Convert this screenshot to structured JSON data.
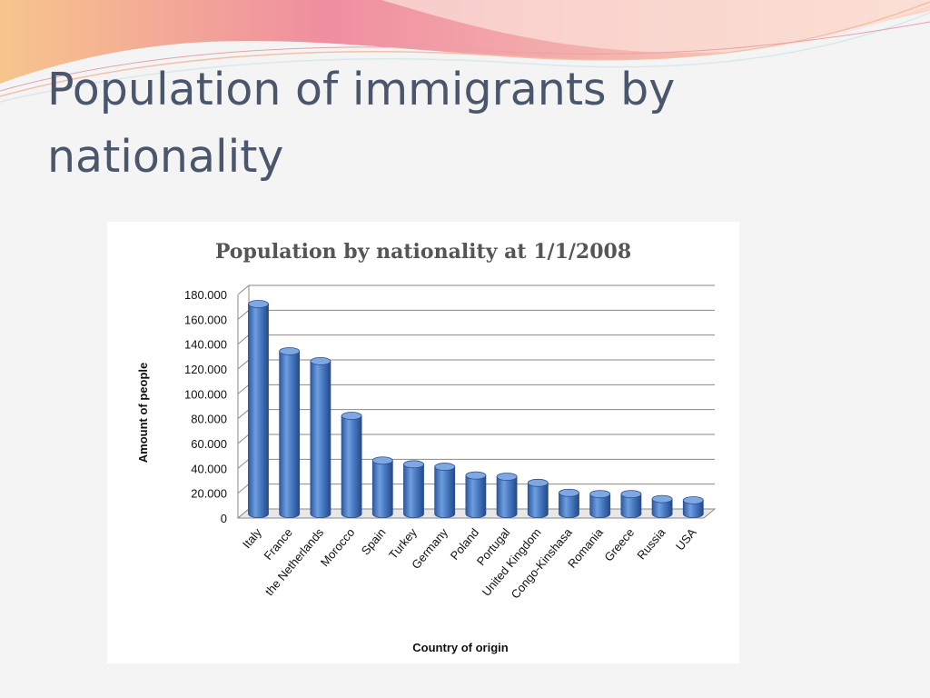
{
  "slide": {
    "title": "Population of immigrants by nationality",
    "background_color": "#f4f4f5",
    "title_color": "#4a566b",
    "wave_colors": [
      "#e9869a",
      "#f6c98a",
      "#f3a0a4",
      "#c7dfe6"
    ]
  },
  "chart_data": {
    "type": "bar",
    "title": "Population by nationality at 1/1/2008",
    "xlabel": "Country of origin",
    "ylabel": "Amount of people",
    "categories": [
      "Italy",
      "France",
      "the Netherlands",
      "Morocco",
      "Spain",
      "Turkey",
      "Germany",
      "Poland",
      "Portugal",
      "United Kingdom",
      "Congo-Kinshasa",
      "Romania",
      "Greece",
      "Russia",
      "USA"
    ],
    "values": [
      169000,
      131000,
      123000,
      79000,
      43000,
      40000,
      38000,
      31000,
      30000,
      25000,
      17000,
      16000,
      16000,
      12000,
      11000
    ],
    "ylim": [
      0,
      180000
    ],
    "yticks": [
      0,
      20000,
      40000,
      60000,
      80000,
      100000,
      120000,
      140000,
      160000,
      180000
    ],
    "ytick_labels": [
      "0",
      "20.000",
      "40.000",
      "60.000",
      "80.000",
      "100.000",
      "120.000",
      "140.000",
      "160.000",
      "180.000"
    ],
    "grid": true,
    "legend": "none",
    "bar_color": "#4a7cc4",
    "style": "3d-cylinder"
  }
}
